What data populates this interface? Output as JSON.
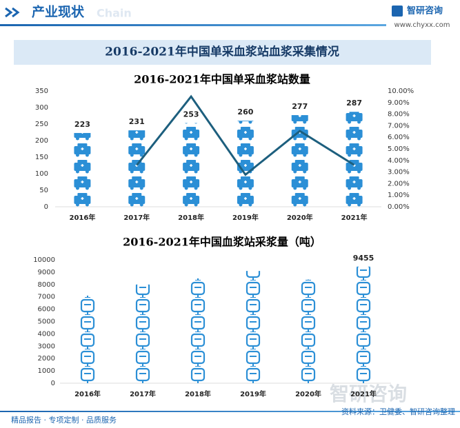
{
  "header": {
    "title": "产业现状",
    "watermark": "Chain",
    "logo": "智研咨询",
    "url": "www.chyxx.com"
  },
  "banner": "2016-2021年中国单采血浆站血浆采集情况",
  "chart_data": [
    {
      "type": "bar",
      "title": "2016-2021年中国单采血浆站数量",
      "icon": "ambulance",
      "categories": [
        "2016年",
        "2017年",
        "2018年",
        "2019年",
        "2020年",
        "2021年"
      ],
      "series": [
        {
          "type": "bar",
          "color": "#2b8fd6",
          "values": [
            223,
            231,
            253,
            260,
            277,
            287
          ]
        },
        {
          "type": "line",
          "axis": "y2",
          "color": "#1d5f7e",
          "values": [
            null,
            3.59,
            9.52,
            2.77,
            6.54,
            3.61
          ]
        }
      ],
      "ylim": [
        0,
        350
      ],
      "yticks": [
        0,
        50,
        100,
        150,
        200,
        250,
        300,
        350
      ],
      "y2lim": [
        0,
        10
      ],
      "y2ticks": [
        {
          "value": 0,
          "label": "0.00%"
        },
        {
          "value": 1,
          "label": "1.00%"
        },
        {
          "value": 2,
          "label": "2.00%"
        },
        {
          "value": 3,
          "label": "3.00%"
        },
        {
          "value": 4,
          "label": "4.00%"
        },
        {
          "value": 5,
          "label": "5.00%"
        },
        {
          "value": 6,
          "label": "6.00%"
        },
        {
          "value": 7,
          "label": "7.00%"
        },
        {
          "value": 8,
          "label": "8.00%"
        },
        {
          "value": 9,
          "label": "9.00%"
        },
        {
          "value": 10,
          "label": "10.00%"
        }
      ]
    },
    {
      "type": "bar",
      "title": "2016-2021年中国血浆站采浆量（吨）",
      "icon": "bag",
      "categories": [
        "2016年",
        "2017年",
        "2018年",
        "2019年",
        "2020年",
        "2021年"
      ],
      "series": [
        {
          "type": "bar",
          "color": "#2b8fd6",
          "values": [
            7100,
            8000,
            8500,
            9100,
            8400,
            9455
          ],
          "value_labels": [
            null,
            null,
            null,
            null,
            null,
            "9455"
          ]
        }
      ],
      "ylim": [
        0,
        10000
      ],
      "yticks": [
        0,
        1000,
        2000,
        3000,
        4000,
        5000,
        6000,
        7000,
        8000,
        9000,
        10000
      ]
    }
  ],
  "footer": {
    "left": "精品报告 · 专项定制 · 品质服务",
    "source": "资料来源：卫健委、智研咨询整理",
    "watermark_logo": "智研咨询"
  }
}
